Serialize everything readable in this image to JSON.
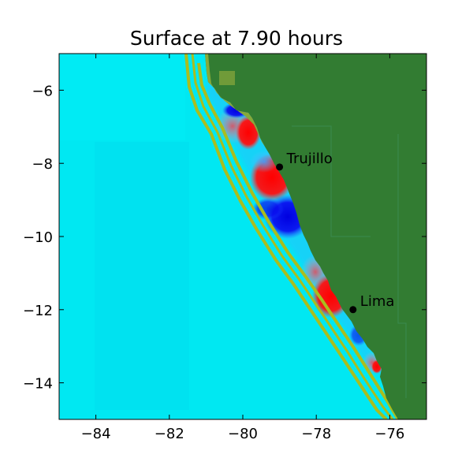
{
  "title": "Surface at 7.90 hours",
  "axes": {
    "xlim": [
      -85,
      -75
    ],
    "ylim": [
      -15,
      -5
    ],
    "xticks": [
      -84,
      -82,
      -80,
      -78,
      -76
    ],
    "yticks": [
      -6,
      -8,
      -10,
      -12,
      -14
    ],
    "x_tick_labels": [
      "−84",
      "−82",
      "−80",
      "−78",
      "−76"
    ],
    "y_tick_labels": [
      "−6",
      "−8",
      "−10",
      "−12",
      "−14"
    ]
  },
  "colors": {
    "ocean": "#00e8f2",
    "land": "#327c32",
    "contour": "#aabd1e",
    "wave_positive": "#ff0000",
    "wave_negative": "#0000e6"
  },
  "cities": [
    {
      "name": "Trujillo",
      "lon": -79.0,
      "lat": -8.1
    },
    {
      "name": "Lima",
      "lon": -77.0,
      "lat": -12.0
    }
  ]
}
